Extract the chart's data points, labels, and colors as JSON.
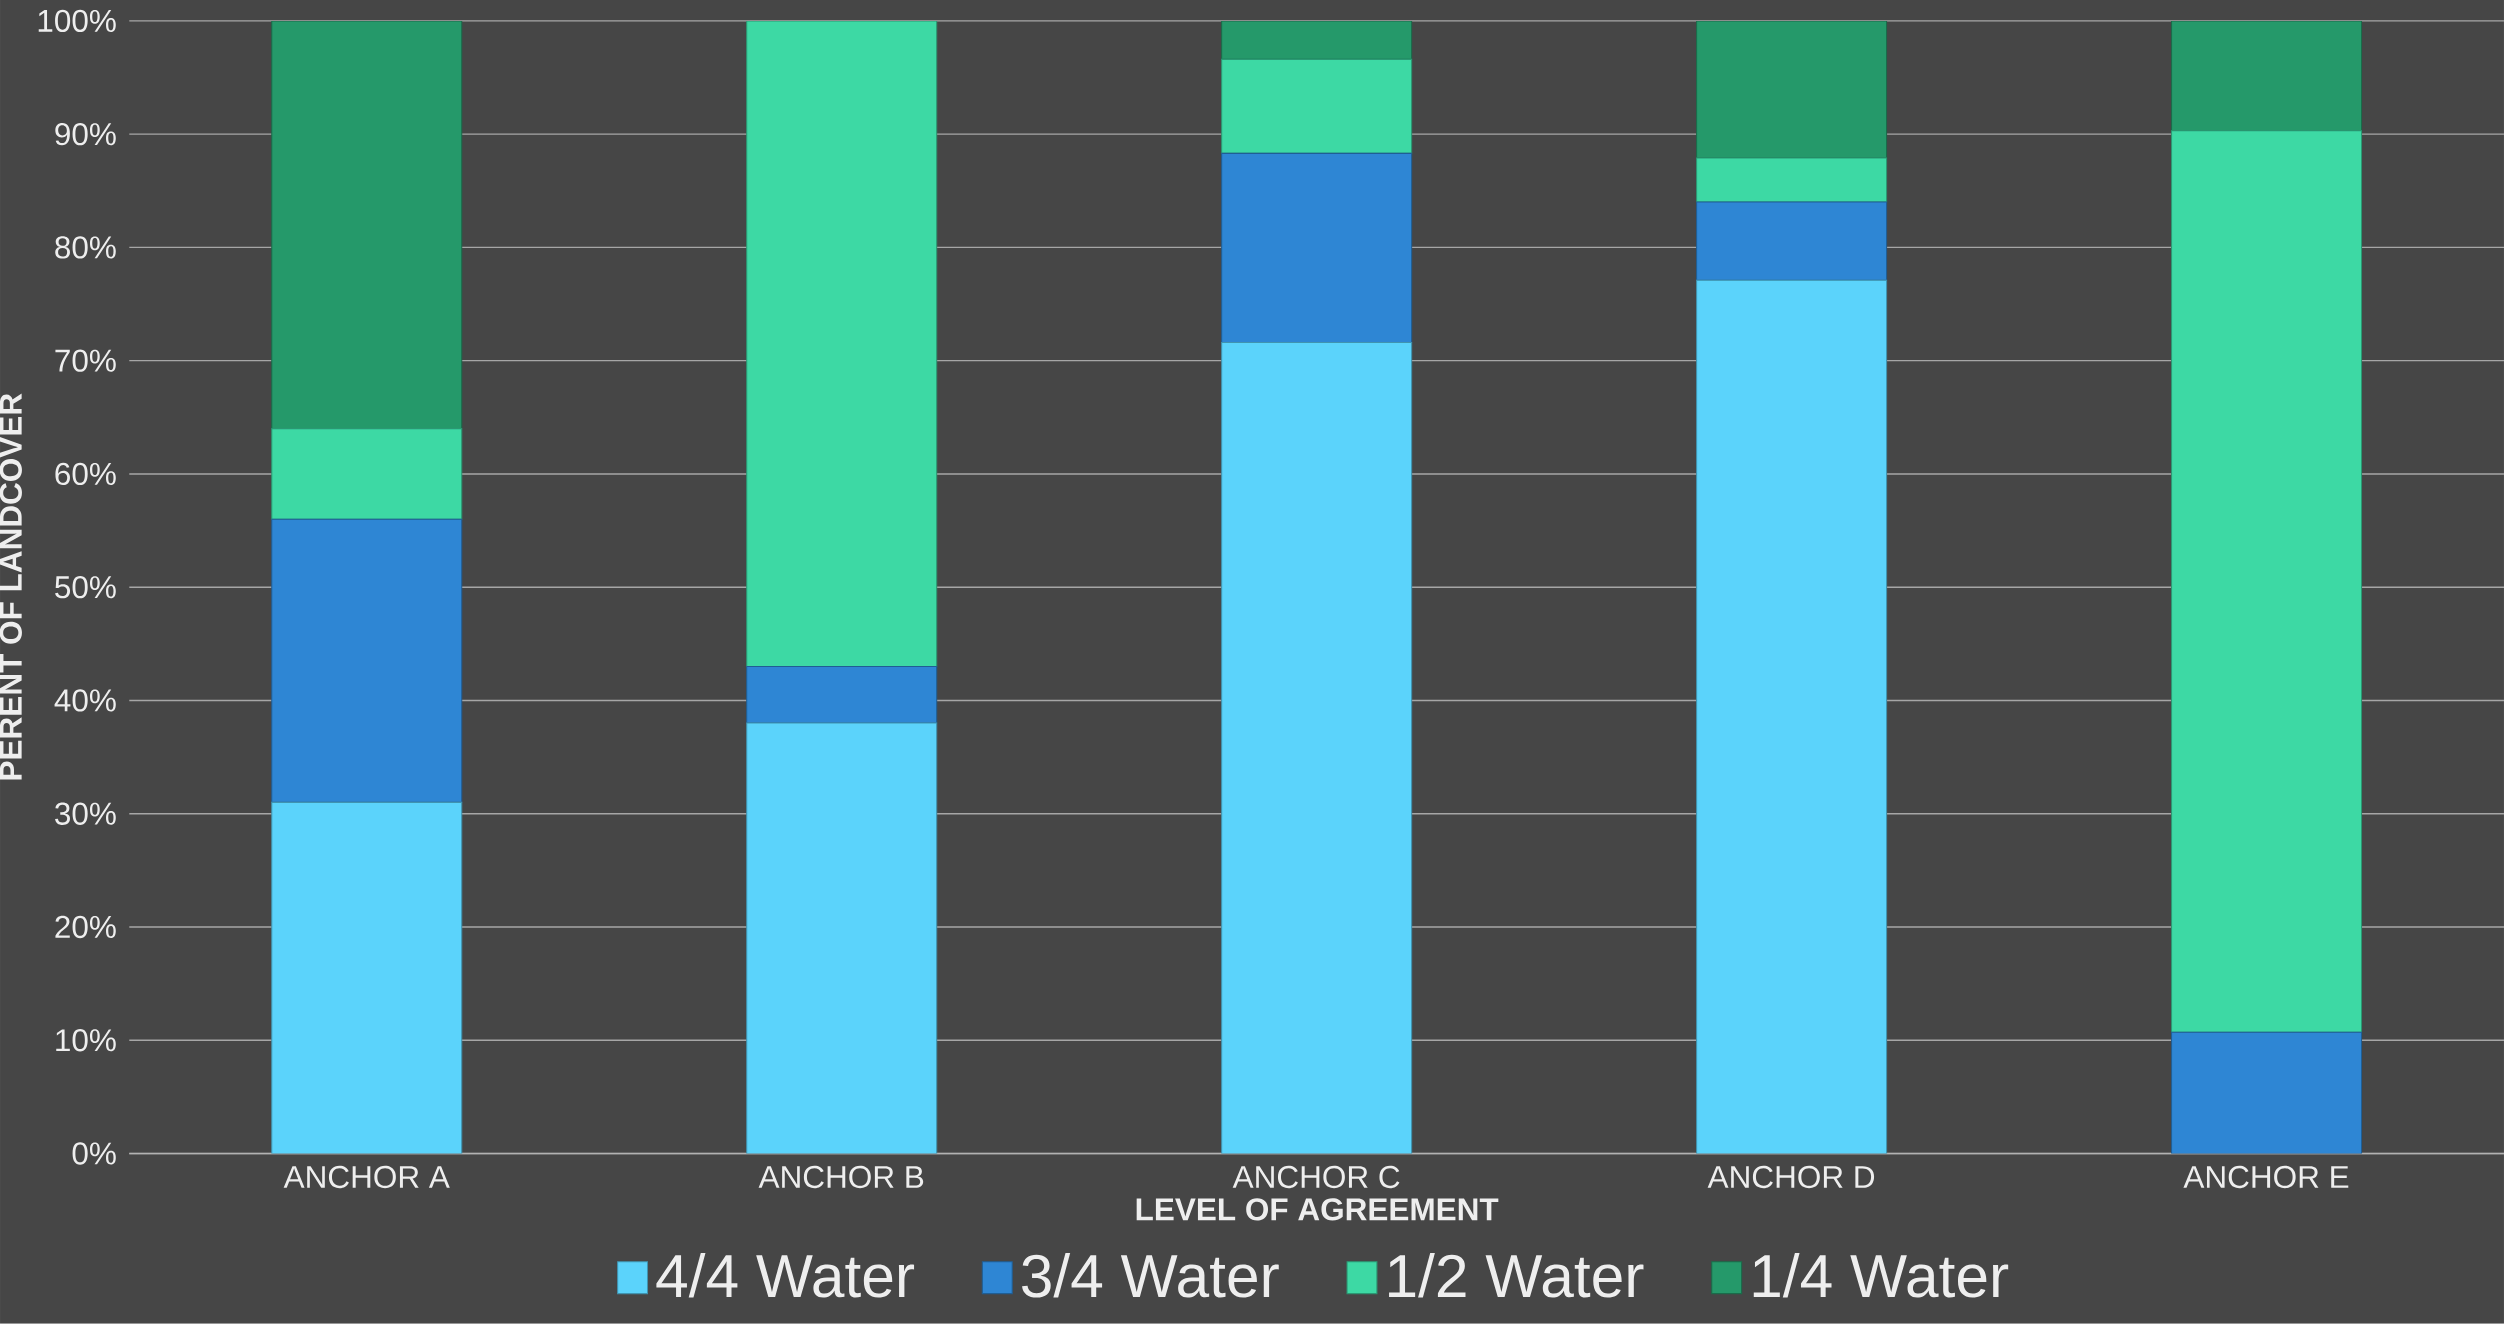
{
  "chart_data": {
    "type": "bar",
    "stacked": true,
    "xlabel": "LEVEL OF AGREEMENT",
    "ylabel": "PERENT OF LANDCOVER",
    "categories": [
      "ANCHOR A",
      "ANCHOR B",
      "ANCHOR C",
      "ANCHOR D",
      "ANCHOR E"
    ],
    "series": [
      {
        "name": "4/4 Water",
        "color": "#5bd3fb",
        "values": [
          31,
          38,
          71.6,
          77.1,
          0
        ]
      },
      {
        "name": "3/4 Water",
        "color": "#2e86d4",
        "values": [
          25,
          5,
          16.7,
          6.9,
          10.7
        ]
      },
      {
        "name": "1/2 Water",
        "color": "#3dd9a4",
        "values": [
          8,
          57,
          8.3,
          3.9,
          79.6
        ]
      },
      {
        "name": "1/4 Water",
        "color": "#25996a",
        "values": [
          36,
          0,
          3.4,
          12.1,
          9.7
        ]
      }
    ],
    "ylim": [
      0,
      100
    ],
    "yticks": [
      {
        "value": 0,
        "label": "0%"
      },
      {
        "value": 10,
        "label": "10%"
      },
      {
        "value": 20,
        "label": "20%"
      },
      {
        "value": 30,
        "label": "30%"
      },
      {
        "value": 40,
        "label": "40%"
      },
      {
        "value": 50,
        "label": "50%"
      },
      {
        "value": 60,
        "label": "60%"
      },
      {
        "value": 70,
        "label": "70%"
      },
      {
        "value": 80,
        "label": "80%"
      },
      {
        "value": 90,
        "label": "90%"
      },
      {
        "value": 100,
        "label": "100%"
      }
    ],
    "grid": "y",
    "legend": "bottom"
  }
}
